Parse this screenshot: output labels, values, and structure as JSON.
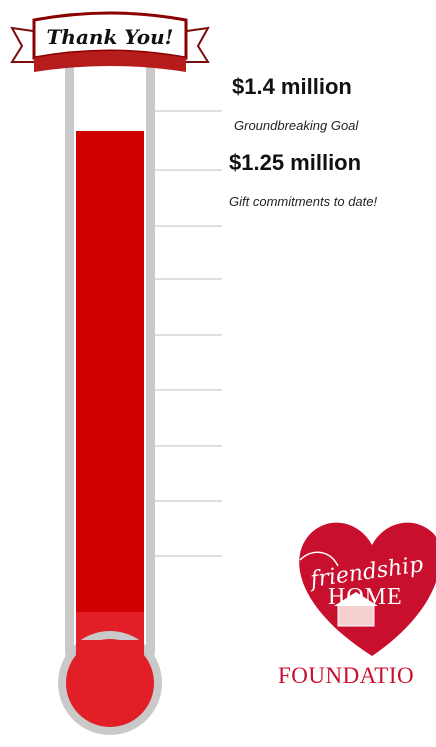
{
  "banner": {
    "text": "Thank You!"
  },
  "goal": {
    "amount": "$1.4 million",
    "caption": "Groundbreaking Goal",
    "value_millions": 1.4
  },
  "raised": {
    "amount": "$1.25 million",
    "caption": "Gift commitments to date!",
    "value_millions": 1.25
  },
  "logo": {
    "script": "friendship",
    "home": "HOME",
    "foundation": "FOUNDATIO"
  },
  "colors": {
    "fill": "#d00000",
    "tube": "#c0c0c0",
    "bulb": "#e02020",
    "banner_red": "#b71c1c"
  }
}
